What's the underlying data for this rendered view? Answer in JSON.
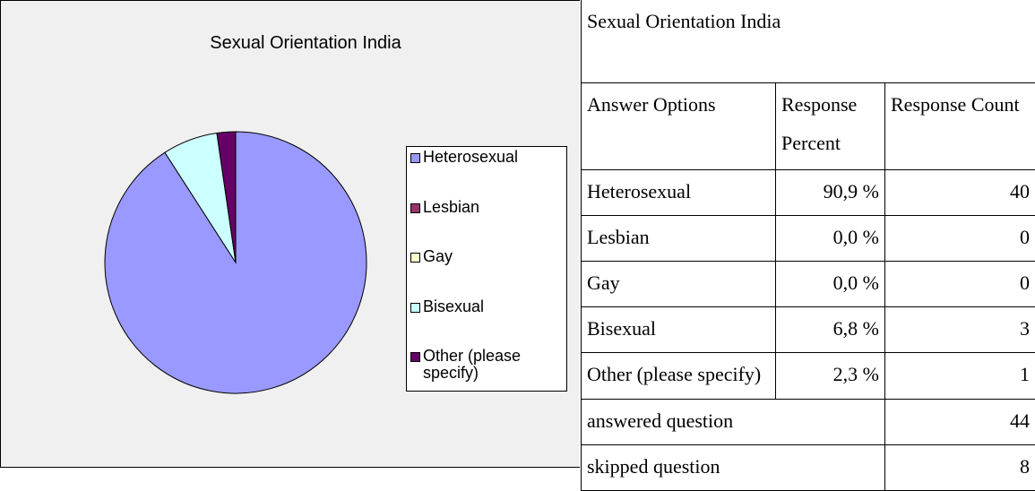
{
  "chart_data": {
    "type": "pie",
    "title": "Sexual Orientation India",
    "categories": [
      "Heterosexual",
      "Lesbian",
      "Gay",
      "Bisexual",
      "Other (please specify)"
    ],
    "values": [
      90.9,
      0,
      0,
      6.8,
      2.3
    ],
    "colors": [
      "#9999ff",
      "#993366",
      "#ffffcc",
      "#ccffff",
      "#660066"
    ],
    "legend": "right"
  },
  "table": {
    "title": "Sexual Orientation India",
    "header": [
      "Answer Options",
      "Response Percent",
      "Response Count"
    ],
    "rows": [
      [
        "Heterosexual",
        "90,9 %",
        "40"
      ],
      [
        "Lesbian",
        "0,0 %",
        "0"
      ],
      [
        "Gay",
        "0,0 %",
        "0"
      ],
      [
        "Bisexual",
        "6,8 %",
        "3"
      ],
      [
        "Other (please specify)",
        "2,3 %",
        "1"
      ]
    ],
    "footer": [
      [
        "answered question",
        "44"
      ],
      [
        "skipped question",
        "8"
      ]
    ]
  }
}
